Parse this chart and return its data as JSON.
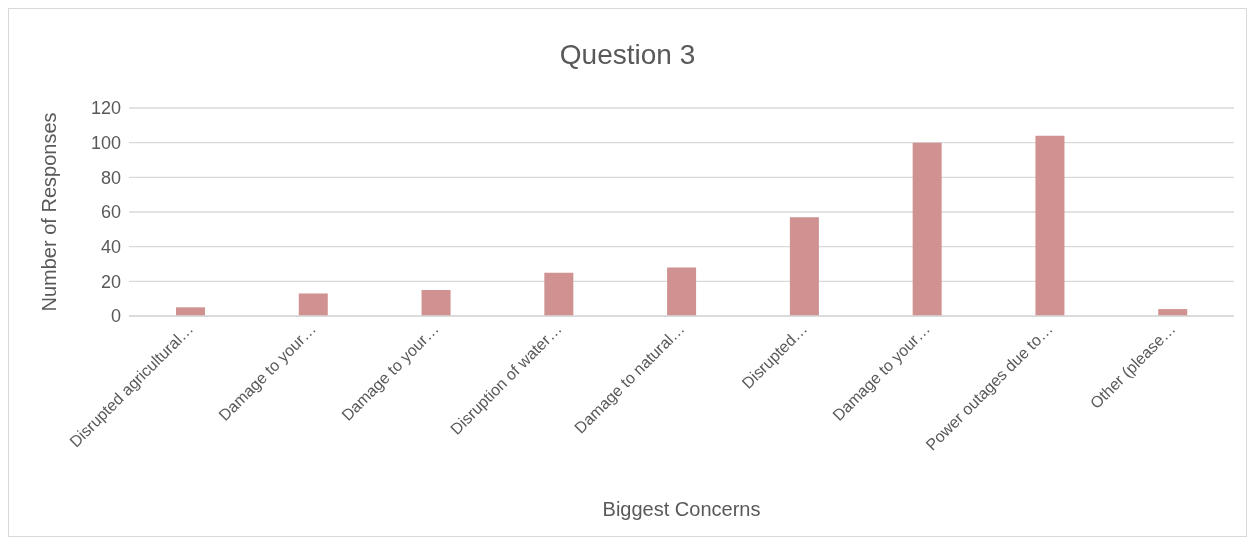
{
  "chart_data": {
    "type": "bar",
    "title": "Question 3",
    "xlabel": "Biggest Concerns",
    "ylabel": "Number of Responses",
    "categories": [
      "Disrupted agricultural…",
      "Damage to your…",
      "Damage to your…",
      "Disruption of water…",
      "Damage to natural…",
      "Disrupted…",
      "Damage to your…",
      "Power outages due to…",
      "Other (please…"
    ],
    "values": [
      5,
      13,
      15,
      25,
      28,
      57,
      100,
      104,
      4
    ],
    "color": "#d09191",
    "ylim": [
      0,
      120
    ],
    "yticks": [
      0,
      20,
      40,
      60,
      80,
      100,
      120
    ],
    "grid": "y"
  }
}
